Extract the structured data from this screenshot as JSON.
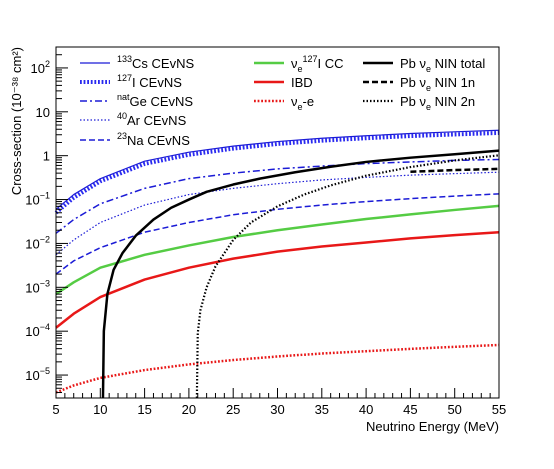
{
  "chart_data": {
    "type": "line",
    "xlabel": "Neutrino Energy (MeV)",
    "ylabel": "Cross-section (10⁻³⁸ cm²)",
    "xlim": [
      5,
      55
    ],
    "ylim": [
      3e-06,
      300
    ],
    "yscale": "log",
    "x_ticks": [
      "5",
      "10",
      "15",
      "20",
      "25",
      "30",
      "35",
      "40",
      "45",
      "50",
      "55"
    ],
    "y_ticks": [
      {
        "base": "10",
        "exp": "2"
      },
      {
        "base": "10",
        "exp": ""
      },
      {
        "base": "1",
        "exp": ""
      },
      {
        "base": "10",
        "exp": "−1"
      },
      {
        "base": "10",
        "exp": "−2"
      },
      {
        "base": "10",
        "exp": "−3"
      },
      {
        "base": "10",
        "exp": "−4"
      },
      {
        "base": "10",
        "exp": "−5"
      }
    ],
    "grid": false,
    "legend_placement": "top",
    "series": [
      {
        "name": "¹³³Cs CEvNS",
        "legend": {
          "sup": "133",
          "text": "Cs CEvNS"
        },
        "color": "#1b1bd6",
        "style": "solid",
        "width": 1.2,
        "x": [
          5,
          7,
          10,
          15,
          20,
          25,
          30,
          35,
          40,
          45,
          50,
          55
        ],
        "y": [
          0.06,
          0.13,
          0.3,
          0.75,
          1.2,
          1.65,
          2.1,
          2.5,
          2.85,
          3.2,
          3.5,
          3.8
        ]
      },
      {
        "name": "¹²⁷I CEvNS",
        "legend": {
          "sup": "127",
          "text": "I CEvNS"
        },
        "color": "#2a2af0",
        "style": "dotted-thick",
        "width": 4,
        "x": [
          5,
          7,
          10,
          15,
          20,
          25,
          30,
          35,
          40,
          45,
          50,
          55
        ],
        "y": [
          0.05,
          0.11,
          0.26,
          0.65,
          1.05,
          1.45,
          1.85,
          2.2,
          2.5,
          2.8,
          3.05,
          3.3
        ]
      },
      {
        "name": "natGe CEvNS",
        "legend": {
          "sup": "nat",
          "text": "Ge CEvNS"
        },
        "color": "#1b1bd6",
        "style": "dashdot",
        "width": 1.5,
        "x": [
          5,
          7,
          10,
          15,
          20,
          25,
          30,
          35,
          40,
          45,
          50,
          55
        ],
        "y": [
          0.017,
          0.035,
          0.08,
          0.18,
          0.3,
          0.4,
          0.5,
          0.58,
          0.66,
          0.72,
          0.78,
          0.82
        ]
      },
      {
        "name": "⁴⁰Ar CEvNS",
        "legend": {
          "sup": "40",
          "text": "Ar CEvNS"
        },
        "color": "#1b1bd6",
        "style": "dotted",
        "width": 1.2,
        "x": [
          5,
          7,
          10,
          15,
          20,
          25,
          30,
          35,
          40,
          45,
          50,
          55
        ],
        "y": [
          0.0055,
          0.012,
          0.03,
          0.075,
          0.13,
          0.18,
          0.23,
          0.28,
          0.32,
          0.36,
          0.39,
          0.42
        ]
      },
      {
        "name": "²³Na CEvNS",
        "legend": {
          "sup": "23",
          "text": "Na CEvNS"
        },
        "color": "#1b1bd6",
        "style": "dashed",
        "width": 1.5,
        "x": [
          5,
          7,
          10,
          15,
          20,
          25,
          30,
          35,
          40,
          45,
          50,
          55
        ],
        "y": [
          0.002,
          0.004,
          0.008,
          0.018,
          0.03,
          0.045,
          0.06,
          0.075,
          0.09,
          0.105,
          0.12,
          0.135
        ]
      },
      {
        "name": "νe ¹²⁷I CC",
        "legend": {
          "pre": "ν",
          "sub": "e",
          "sup2": "127",
          "text": "I CC"
        },
        "color": "#55cc44",
        "style": "solid",
        "width": 2.5,
        "x": [
          5,
          7,
          10,
          15,
          20,
          25,
          30,
          35,
          40,
          45,
          50,
          55
        ],
        "y": [
          0.0007,
          0.0013,
          0.0028,
          0.0055,
          0.009,
          0.014,
          0.02,
          0.027,
          0.036,
          0.046,
          0.058,
          0.072
        ]
      },
      {
        "name": "IBD",
        "legend": {
          "text": "IBD"
        },
        "color": "#e81818",
        "style": "solid",
        "width": 2.5,
        "x": [
          5,
          7,
          10,
          15,
          20,
          25,
          30,
          35,
          40,
          45,
          50,
          55
        ],
        "y": [
          0.00012,
          0.00025,
          0.0006,
          0.0015,
          0.0028,
          0.0045,
          0.0065,
          0.0085,
          0.0105,
          0.013,
          0.0155,
          0.018
        ]
      },
      {
        "name": "νe-e",
        "legend": {
          "pre": "ν",
          "sub": "e",
          "text": "-e"
        },
        "color": "#e81818",
        "style": "dotted-thick",
        "width": 2.5,
        "x": [
          5,
          7,
          10,
          15,
          20,
          25,
          30,
          35,
          40,
          45,
          50,
          55
        ],
        "y": [
          4e-06,
          5.8e-06,
          8.6e-06,
          1.3e-05,
          1.75e-05,
          2.2e-05,
          2.65e-05,
          3.1e-05,
          3.5e-05,
          3.95e-05,
          4.4e-05,
          4.85e-05
        ]
      },
      {
        "name": "Pb νe NIN total",
        "legend": {
          "pre": "Pb ν",
          "sub": "e",
          "text": " NIN total"
        },
        "color": "#000000",
        "style": "solid",
        "width": 2.5,
        "x": [
          10.3,
          10.4,
          10.8,
          11.5,
          12.5,
          14,
          16,
          18,
          20,
          22,
          25,
          28,
          32,
          36,
          40,
          45,
          50,
          55
        ],
        "y": [
          3e-06,
          0.0001,
          0.0007,
          0.0025,
          0.006,
          0.015,
          0.035,
          0.065,
          0.1,
          0.15,
          0.22,
          0.3,
          0.42,
          0.56,
          0.72,
          0.9,
          1.08,
          1.3
        ]
      },
      {
        "name": "Pb νe NIN 1n",
        "legend": {
          "pre": "Pb ν",
          "sub": "e",
          "text": " NIN 1n"
        },
        "color": "#000000",
        "style": "dashed",
        "width": 2.5,
        "x": [
          45,
          50,
          55
        ],
        "y": [
          0.43,
          0.47,
          0.5
        ]
      },
      {
        "name": "Pb νe NIN 2n",
        "legend": {
          "pre": "Pb ν",
          "sub": "e",
          "text": " NIN 2n"
        },
        "color": "#000000",
        "style": "dotted",
        "width": 2.2,
        "x": [
          20.9,
          21,
          21.3,
          22,
          23,
          25,
          27,
          30,
          33,
          36,
          40,
          45,
          50,
          55
        ],
        "y": [
          3e-06,
          9e-05,
          0.0003,
          0.001,
          0.003,
          0.012,
          0.03,
          0.07,
          0.13,
          0.21,
          0.35,
          0.55,
          0.78,
          1.02
        ]
      }
    ]
  }
}
